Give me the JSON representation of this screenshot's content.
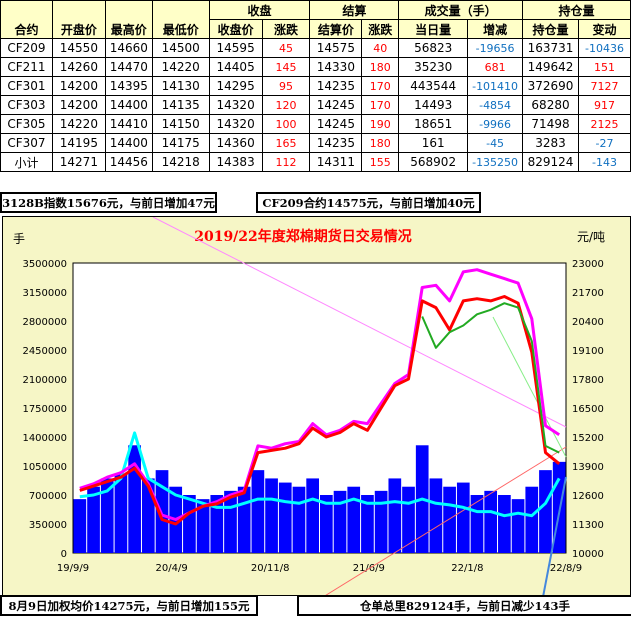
{
  "table": {
    "group_headers": {
      "close": "收盘",
      "settle": "结算",
      "volume": "成交量（手）",
      "oi": "持仓量"
    },
    "headers": [
      "合约",
      "开盘价",
      "最高价",
      "最低价",
      "收盘价",
      "涨跌",
      "结算价",
      "涨跌",
      "当日量",
      "增减",
      "持仓量",
      "变动"
    ],
    "rows": [
      [
        "CF209",
        "14550",
        "14660",
        "14500",
        "14595",
        "45",
        "14575",
        "40",
        "56823",
        "-19656",
        "163731",
        "-10436"
      ],
      [
        "CF211",
        "14260",
        "14470",
        "14220",
        "14405",
        "145",
        "14330",
        "180",
        "35230",
        "681",
        "149642",
        "151"
      ],
      [
        "CF301",
        "14200",
        "14395",
        "14130",
        "14295",
        "95",
        "14235",
        "170",
        "443544",
        "-101410",
        "372690",
        "7127"
      ],
      [
        "CF303",
        "14200",
        "14400",
        "14135",
        "14320",
        "120",
        "14245",
        "170",
        "14493",
        "-4854",
        "68280",
        "917"
      ],
      [
        "CF305",
        "14220",
        "14410",
        "14150",
        "14320",
        "100",
        "14245",
        "190",
        "18651",
        "-9966",
        "71498",
        "2125"
      ],
      [
        "CF307",
        "14195",
        "14400",
        "14175",
        "14360",
        "165",
        "14235",
        "180",
        "161",
        "-45",
        "3283",
        "-27"
      ],
      [
        "小计",
        "14271",
        "14456",
        "14218",
        "14383",
        "112",
        "14311",
        "155",
        "568902",
        "-135250",
        "829124",
        "-143"
      ]
    ]
  },
  "info": {
    "index_note": "3128B指数15676元，与前日增加47元",
    "contract_note": "CF209合约14575元，与前日增加40元",
    "weighted_note": "8月9日加权均价14275元，与前日增加155元",
    "warrant_note": "仓单总里829124手，与前日减少143手"
  },
  "chart_data": {
    "type": "bar+line",
    "title": "2019/22年度郑棉期货日交易情况",
    "ylabel_left": "手",
    "ylabel_right": "元/吨",
    "ylim_left": [
      0,
      3500000
    ],
    "ylim_right": [
      10000,
      23000
    ],
    "yticks_left": [
      "3500000",
      "3150000",
      "2800000",
      "2450000",
      "2100000",
      "1750000",
      "1400000",
      "1050000",
      "700000",
      "350000",
      "0"
    ],
    "yticks_right": [
      "23000",
      "21700",
      "20400",
      "19100",
      "17800",
      "16500",
      "15200",
      "13900",
      "12600",
      "11300",
      "10000"
    ],
    "xticks": [
      "19/9/9",
      "20/4/9",
      "20/11/8",
      "21/6/9",
      "22/1/8",
      "22/8/9"
    ],
    "x": [
      "19/9",
      "19/10",
      "19/11",
      "19/12",
      "20/1",
      "20/2",
      "20/3",
      "20/4",
      "20/5",
      "20/6",
      "20/7",
      "20/8",
      "20/9",
      "20/10",
      "20/11",
      "20/12",
      "21/1",
      "21/2",
      "21/3",
      "21/4",
      "21/5",
      "21/6",
      "21/7",
      "21/8",
      "21/9",
      "21/10",
      "21/11",
      "21/12",
      "22/1",
      "22/2",
      "22/3",
      "22/4",
      "22/5",
      "22/6",
      "22/7",
      "22/8"
    ],
    "colors": {
      "bars": "#0000ff",
      "red": "#ff0000",
      "magenta": "#ff00ff",
      "green": "#22aa22",
      "cyan": "#00ffff"
    },
    "series": [
      {
        "axis": "left",
        "kind": "bar",
        "values": [
          650000,
          800000,
          900000,
          950000,
          1300000,
          900000,
          1000000,
          800000,
          700000,
          650000,
          700000,
          750000,
          800000,
          1000000,
          900000,
          850000,
          800000,
          900000,
          700000,
          750000,
          800000,
          700000,
          750000,
          900000,
          800000,
          1300000,
          900000,
          800000,
          850000,
          700000,
          750000,
          700000,
          650000,
          800000,
          1000000,
          1100000
        ]
      },
      {
        "axis": "left",
        "kind": "line",
        "color": "cyan",
        "values": [
          680000,
          700000,
          750000,
          900000,
          1450000,
          900000,
          800000,
          700000,
          650000,
          600000,
          550000,
          550000,
          600000,
          650000,
          650000,
          620000,
          600000,
          650000,
          600000,
          600000,
          650000,
          600000,
          600000,
          620000,
          600000,
          650000,
          600000,
          580000,
          550000,
          500000,
          500000,
          450000,
          480000,
          450000,
          600000,
          900000
        ]
      },
      {
        "axis": "right",
        "kind": "line",
        "color": "magenta",
        "values": [
          12900,
          13100,
          13400,
          13600,
          14000,
          13100,
          11700,
          11500,
          11800,
          12100,
          12300,
          12600,
          12800,
          14800,
          14700,
          14900,
          15000,
          15800,
          15300,
          15500,
          15900,
          15800,
          16700,
          17600,
          18000,
          21900,
          22000,
          21300,
          22600,
          22700,
          22500,
          22300,
          22100,
          20500,
          15700,
          15300
        ]
      },
      {
        "axis": "right",
        "kind": "line",
        "color": "red",
        "values": [
          12800,
          13000,
          13200,
          13400,
          13800,
          13000,
          11500,
          11300,
          11800,
          12100,
          12200,
          12500,
          12700,
          14500,
          14600,
          14700,
          14900,
          15600,
          15200,
          15400,
          15800,
          15500,
          16500,
          17500,
          17800,
          21300,
          21000,
          20000,
          21300,
          21400,
          21300,
          21500,
          21200,
          19000,
          14500,
          14000
        ]
      },
      {
        "axis": "right",
        "kind": "line",
        "color": "green",
        "values": [
          null,
          null,
          null,
          null,
          null,
          null,
          null,
          null,
          null,
          null,
          null,
          null,
          null,
          null,
          null,
          null,
          null,
          null,
          null,
          null,
          null,
          null,
          null,
          null,
          null,
          20600,
          19200,
          19900,
          20200,
          20700,
          20900,
          21200,
          21000,
          19500,
          14800,
          14500
        ]
      }
    ]
  }
}
